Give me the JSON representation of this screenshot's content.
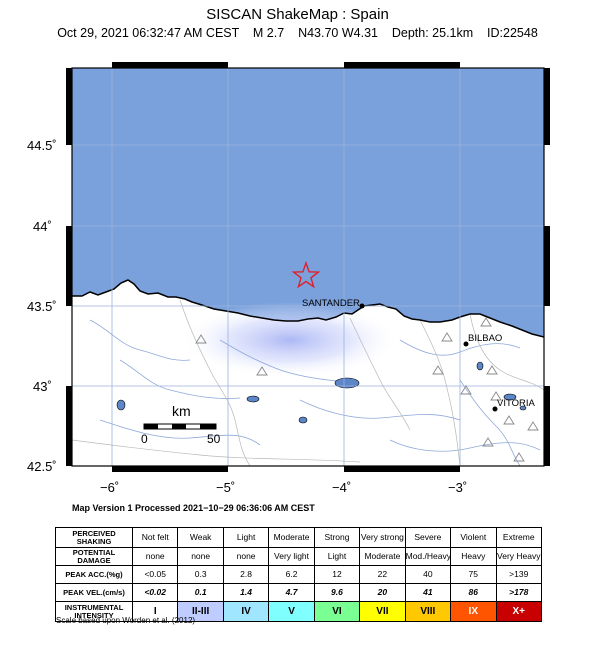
{
  "header": {
    "title": "SISCAN ShakeMap : Spain",
    "subtitle": "Oct 29, 2021 06:32:47 AM CEST    M 2.7    N43.70 W4.31    Depth: 25.1km    ID:22548"
  },
  "map": {
    "lat_labels": [
      "44.5˚",
      "44˚",
      "43.5˚",
      "43˚",
      "42.5˚"
    ],
    "lon_labels": [
      "−6˚",
      "−5˚",
      "−4˚",
      "−3˚"
    ],
    "cities": [
      "SANTANDER",
      "BILBAO",
      "VITORIA"
    ],
    "scale_title": "km",
    "scale_start": "0",
    "scale_end": "50",
    "colors": {
      "sea": "#7ba1dd",
      "land": "#ffffff",
      "epicenter": "#e0202a",
      "shaking": "#b9c3f5"
    },
    "epicenter_icon": "star-icon",
    "station_icon": "triangle-icon"
  },
  "processed_note": "Map Version 1 Processed 2021−10−29 06:36:06 AM CEST",
  "legend": {
    "rows": [
      {
        "head": "PERCEIVED SHAKING",
        "cells": [
          "Not felt",
          "Weak",
          "Light",
          "Moderate",
          "Strong",
          "Very strong",
          "Severe",
          "Violent",
          "Extreme"
        ]
      },
      {
        "head": "POTENTIAL DAMAGE",
        "cells": [
          "none",
          "none",
          "none",
          "Very light",
          "Light",
          "Moderate",
          "Mod./Heavy",
          "Heavy",
          "Very Heavy"
        ]
      },
      {
        "head": "PEAK ACC.(%g)",
        "cells": [
          "<0.05",
          "0.3",
          "2.8",
          "6.2",
          "12",
          "22",
          "40",
          "75",
          ">139"
        ]
      },
      {
        "head": "PEAK VEL.(cm/s)",
        "cells": [
          "<0.02",
          "0.1",
          "1.4",
          "4.7",
          "9.6",
          "20",
          "41",
          "86",
          ">178"
        ]
      },
      {
        "head": "INSTRUMENTAL INTENSITY",
        "cells": [
          "I",
          "II-III",
          "IV",
          "V",
          "VI",
          "VII",
          "VIII",
          "IX",
          "X+"
        ]
      }
    ],
    "intensity_colors": [
      "#ffffff",
      "#bfccff",
      "#a0e6ff",
      "#80ffff",
      "#7aff93",
      "#ffff00",
      "#ffc800",
      "#ff5500",
      "#c80000"
    ]
  },
  "scale_note": "Scale based upon Worden et al. (2012)"
}
